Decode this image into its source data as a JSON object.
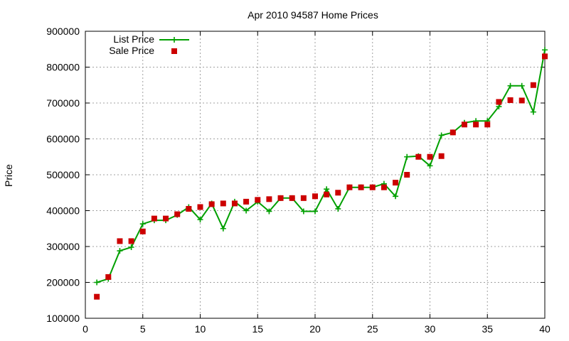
{
  "chart_data": {
    "type": "line",
    "title": "Apr 2010 94587 Home Prices",
    "xlabel": "",
    "ylabel": "Price",
    "xlim": [
      0,
      40
    ],
    "ylim": [
      100000,
      900000
    ],
    "xticks": [
      0,
      5,
      10,
      15,
      20,
      25,
      30,
      35,
      40
    ],
    "yticks": [
      100000,
      200000,
      300000,
      400000,
      500000,
      600000,
      700000,
      800000,
      900000
    ],
    "grid": true,
    "legend_position": "top-left",
    "x": [
      1,
      2,
      3,
      4,
      5,
      6,
      7,
      8,
      9,
      10,
      11,
      12,
      13,
      14,
      15,
      16,
      17,
      18,
      19,
      20,
      21,
      22,
      23,
      24,
      25,
      26,
      27,
      28,
      29,
      30,
      31,
      32,
      33,
      34,
      35,
      36,
      37,
      38,
      39,
      40
    ],
    "series": [
      {
        "name": "List Price",
        "style": "line-plus",
        "color": "#00a000",
        "values": [
          200000,
          210000,
          288000,
          298000,
          363000,
          373000,
          373000,
          388000,
          410000,
          375000,
          420000,
          350000,
          425000,
          400000,
          425000,
          398000,
          435000,
          435000,
          398000,
          398000,
          460000,
          405000,
          465000,
          465000,
          465000,
          475000,
          440000,
          550000,
          552000,
          525000,
          610000,
          618000,
          645000,
          650000,
          650000,
          690000,
          748000,
          748000,
          675000,
          848000
        ]
      },
      {
        "name": "Sale Price",
        "style": "square",
        "color": "#cc0000",
        "values": [
          160000,
          215000,
          315000,
          315000,
          342000,
          378000,
          378000,
          390000,
          405000,
          410000,
          418000,
          420000,
          420000,
          425000,
          430000,
          432000,
          435000,
          435000,
          435000,
          440000,
          445000,
          450000,
          465000,
          465000,
          465000,
          465000,
          478000,
          500000,
          550000,
          550000,
          552000,
          618000,
          640000,
          640000,
          640000,
          703000,
          708000,
          707000,
          750000,
          830000
        ]
      }
    ]
  }
}
